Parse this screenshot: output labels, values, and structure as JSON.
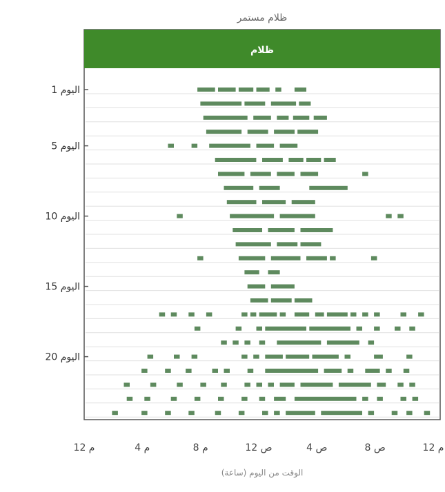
{
  "chart_data": {
    "type": "scatter",
    "title": "ظلام مستمر",
    "panel_label": "ظلام",
    "xlabel": "الوقت من اليوم (ساعة)",
    "ylabel": "",
    "x_ticks": [
      {
        "hour": 0,
        "label": "12 م"
      },
      {
        "hour": 4,
        "label": "4 م"
      },
      {
        "hour": 8,
        "label": "8 م"
      },
      {
        "hour": 12,
        "label": "12 ص"
      },
      {
        "hour": 16,
        "label": "4 ص"
      },
      {
        "hour": 20,
        "label": "8 ص"
      },
      {
        "hour": 24,
        "label": "12 م"
      }
    ],
    "y_ticks": [
      {
        "day": 1,
        "label": "اليوم 1"
      },
      {
        "day": 5,
        "label": "اليوم 5"
      },
      {
        "day": 10,
        "label": "اليوم 10"
      },
      {
        "day": 15,
        "label": "اليوم 15"
      },
      {
        "day": 20,
        "label": "اليوم 20"
      }
    ],
    "xlim": [
      0,
      24
    ],
    "ylim": [
      1,
      24
    ],
    "colors": {
      "activity": "#5e8a5e",
      "header": "#3f8a2a",
      "border": "#555555",
      "grid": "#e0e0e0"
    },
    "days": [
      {
        "day": 1,
        "bouts": [
          [
            7.6,
            8.8
          ],
          [
            9.0,
            10.2
          ],
          [
            10.4,
            11.4
          ],
          [
            11.6,
            12.5
          ],
          [
            12.9,
            13.3
          ],
          [
            14.2,
            15.0
          ]
        ]
      },
      {
        "day": 2,
        "bouts": [
          [
            7.8,
            10.6
          ],
          [
            10.8,
            12.2
          ],
          [
            12.6,
            14.3
          ],
          [
            14.5,
            15.3
          ]
        ]
      },
      {
        "day": 3,
        "bouts": [
          [
            8.0,
            11.0
          ],
          [
            11.4,
            12.6
          ],
          [
            13.0,
            13.8
          ],
          [
            14.1,
            15.2
          ],
          [
            15.5,
            16.4
          ]
        ]
      },
      {
        "day": 4,
        "bouts": [
          [
            8.2,
            10.6
          ],
          [
            11.0,
            12.4
          ],
          [
            12.8,
            14.2
          ],
          [
            14.4,
            15.8
          ]
        ]
      },
      {
        "day": 5,
        "bouts": [
          [
            5.6,
            6.0
          ],
          [
            7.2,
            7.6
          ],
          [
            8.4,
            11.2
          ],
          [
            11.6,
            12.8
          ],
          [
            13.2,
            14.4
          ]
        ]
      },
      {
        "day": 6,
        "bouts": [
          [
            8.8,
            11.6
          ],
          [
            12.0,
            13.4
          ],
          [
            13.8,
            14.8
          ],
          [
            15.0,
            16.0
          ],
          [
            16.2,
            17.0
          ]
        ]
      },
      {
        "day": 7,
        "bouts": [
          [
            9.0,
            10.8
          ],
          [
            11.2,
            12.6
          ],
          [
            13.0,
            14.2
          ],
          [
            14.6,
            15.8
          ],
          [
            18.8,
            19.2
          ]
        ]
      },
      {
        "day": 8,
        "bouts": [
          [
            9.4,
            11.4
          ],
          [
            11.8,
            13.2
          ],
          [
            15.2,
            17.8
          ]
        ]
      },
      {
        "day": 9,
        "bouts": [
          [
            9.6,
            11.6
          ],
          [
            12.0,
            13.6
          ],
          [
            14.0,
            15.6
          ]
        ]
      },
      {
        "day": 10,
        "bouts": [
          [
            6.2,
            6.6
          ],
          [
            9.8,
            12.8
          ],
          [
            13.2,
            15.6
          ],
          [
            20.4,
            20.8
          ],
          [
            21.2,
            21.6
          ]
        ]
      },
      {
        "day": 11,
        "bouts": [
          [
            10.0,
            12.0
          ],
          [
            12.4,
            14.2
          ],
          [
            14.6,
            16.8
          ]
        ]
      },
      {
        "day": 12,
        "bouts": [
          [
            10.2,
            12.6
          ],
          [
            13.0,
            14.4
          ],
          [
            14.6,
            16.0
          ]
        ]
      },
      {
        "day": 13,
        "bouts": [
          [
            7.6,
            8.0
          ],
          [
            10.4,
            12.2
          ],
          [
            12.6,
            14.6
          ],
          [
            15.0,
            16.4
          ],
          [
            16.6,
            17.0
          ],
          [
            19.4,
            19.8
          ]
        ]
      },
      {
        "day": 14,
        "bouts": [
          [
            10.8,
            11.8
          ],
          [
            12.4,
            13.2
          ]
        ]
      },
      {
        "day": 15,
        "bouts": [
          [
            11.0,
            12.2
          ],
          [
            12.6,
            14.2
          ]
        ]
      },
      {
        "day": 16,
        "bouts": [
          [
            11.2,
            12.4
          ],
          [
            12.6,
            14.0
          ],
          [
            14.2,
            15.4
          ]
        ]
      },
      {
        "day": 17,
        "bouts": [
          [
            5.0,
            5.4
          ],
          [
            5.8,
            6.2
          ],
          [
            7.0,
            7.4
          ],
          [
            8.2,
            8.6
          ],
          [
            10.6,
            11.0
          ],
          [
            11.2,
            11.6
          ],
          [
            11.8,
            13.0
          ],
          [
            13.2,
            13.6
          ],
          [
            14.2,
            15.2
          ],
          [
            15.6,
            16.2
          ],
          [
            16.4,
            17.8
          ],
          [
            18.0,
            18.4
          ],
          [
            18.8,
            19.2
          ],
          [
            19.6,
            20.0
          ],
          [
            21.4,
            21.8
          ],
          [
            22.6,
            23.0
          ]
        ]
      },
      {
        "day": 18,
        "bouts": [
          [
            7.4,
            7.8
          ],
          [
            10.2,
            10.6
          ],
          [
            11.6,
            12.0
          ],
          [
            12.2,
            15.0
          ],
          [
            15.2,
            18.0
          ],
          [
            18.4,
            18.8
          ],
          [
            19.6,
            20.0
          ],
          [
            21.0,
            21.4
          ],
          [
            22.0,
            22.4
          ]
        ]
      },
      {
        "day": 19,
        "bouts": [
          [
            9.2,
            9.6
          ],
          [
            10.0,
            10.4
          ],
          [
            10.8,
            11.2
          ],
          [
            11.8,
            12.2
          ],
          [
            13.0,
            16.0
          ],
          [
            16.4,
            18.6
          ],
          [
            19.2,
            19.6
          ]
        ]
      },
      {
        "day": 20,
        "bouts": [
          [
            4.2,
            4.6
          ],
          [
            6.0,
            6.4
          ],
          [
            7.2,
            7.6
          ],
          [
            10.6,
            11.0
          ],
          [
            11.4,
            11.8
          ],
          [
            12.2,
            13.4
          ],
          [
            13.6,
            15.2
          ],
          [
            15.4,
            17.2
          ],
          [
            17.6,
            18.0
          ],
          [
            19.6,
            20.2
          ],
          [
            21.8,
            22.2
          ]
        ]
      },
      {
        "day": 21,
        "bouts": [
          [
            3.8,
            4.2
          ],
          [
            5.4,
            5.8
          ],
          [
            6.8,
            7.2
          ],
          [
            8.6,
            9.0
          ],
          [
            9.4,
            9.8
          ],
          [
            11.0,
            11.4
          ],
          [
            12.2,
            15.8
          ],
          [
            16.2,
            17.4
          ],
          [
            17.8,
            18.2
          ],
          [
            19.0,
            20.0
          ],
          [
            20.4,
            20.8
          ],
          [
            21.6,
            22.0
          ]
        ]
      },
      {
        "day": 22,
        "bouts": [
          [
            2.6,
            3.0
          ],
          [
            4.4,
            4.8
          ],
          [
            6.2,
            6.6
          ],
          [
            7.8,
            8.2
          ],
          [
            9.2,
            9.6
          ],
          [
            10.8,
            11.2
          ],
          [
            11.6,
            12.0
          ],
          [
            12.4,
            12.8
          ],
          [
            13.2,
            14.2
          ],
          [
            14.6,
            16.8
          ],
          [
            17.2,
            19.4
          ],
          [
            19.8,
            20.4
          ],
          [
            21.2,
            21.6
          ],
          [
            22.0,
            22.4
          ]
        ]
      },
      {
        "day": 23,
        "bouts": [
          [
            2.8,
            3.2
          ],
          [
            4.0,
            4.4
          ],
          [
            5.8,
            6.2
          ],
          [
            7.4,
            7.8
          ],
          [
            9.0,
            9.4
          ],
          [
            10.6,
            11.0
          ],
          [
            11.8,
            12.2
          ],
          [
            12.8,
            13.6
          ],
          [
            14.2,
            18.4
          ],
          [
            18.8,
            19.2
          ],
          [
            19.8,
            20.2
          ],
          [
            21.4,
            21.8
          ],
          [
            22.2,
            22.6
          ]
        ]
      },
      {
        "day": 24,
        "bouts": [
          [
            1.8,
            2.2
          ],
          [
            3.8,
            4.2
          ],
          [
            5.4,
            5.8
          ],
          [
            7.0,
            7.4
          ],
          [
            8.8,
            9.2
          ],
          [
            10.4,
            10.8
          ],
          [
            12.0,
            12.4
          ],
          [
            12.8,
            13.2
          ],
          [
            13.6,
            15.6
          ],
          [
            16.0,
            18.8
          ],
          [
            19.2,
            19.6
          ],
          [
            20.8,
            21.2
          ],
          [
            21.8,
            22.2
          ],
          [
            23.0,
            23.4
          ]
        ]
      }
    ]
  }
}
